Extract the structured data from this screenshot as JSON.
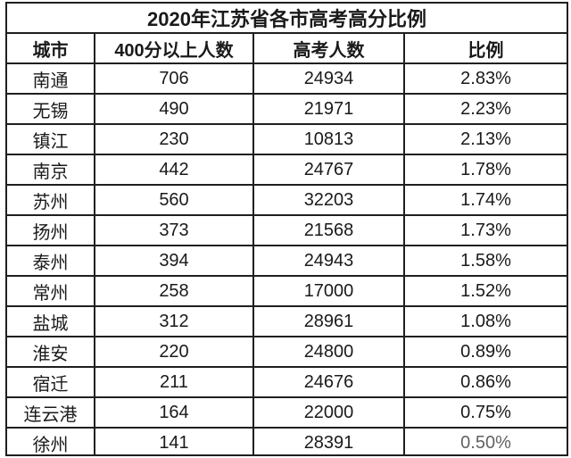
{
  "chart_data": {
    "type": "table",
    "title": "2020年江苏省各市高考高分比例",
    "columns": [
      "城市",
      "400分以上人数",
      "高考人数",
      "比例"
    ],
    "rows": [
      [
        "南通",
        "706",
        "24934",
        "2.83%"
      ],
      [
        "无锡",
        "490",
        "21971",
        "2.23%"
      ],
      [
        "镇江",
        "230",
        "10813",
        "2.13%"
      ],
      [
        "南京",
        "442",
        "24767",
        "1.78%"
      ],
      [
        "苏州",
        "560",
        "32203",
        "1.74%"
      ],
      [
        "扬州",
        "373",
        "21568",
        "1.73%"
      ],
      [
        "泰州",
        "394",
        "24943",
        "1.58%"
      ],
      [
        "常州",
        "258",
        "17000",
        "1.52%"
      ],
      [
        "盐城",
        "312",
        "28961",
        "1.08%"
      ],
      [
        "淮安",
        "220",
        "24800",
        "0.89%"
      ],
      [
        "宿迁",
        "211",
        "24676",
        "0.86%"
      ],
      [
        "连云港",
        "164",
        "22000",
        "0.75%"
      ],
      [
        "徐州",
        "141",
        "28391",
        "0.50%"
      ]
    ]
  },
  "colors": {
    "text": "#1a1a1a",
    "border": "#1f1f1f",
    "background": "#ffffff"
  }
}
